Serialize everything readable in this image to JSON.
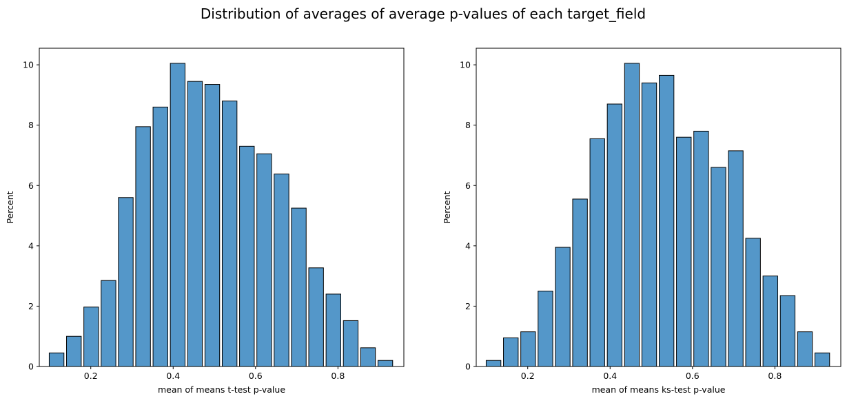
{
  "suptitle": "Distribution of averages of average p-values of each target_field",
  "chart_data": [
    {
      "type": "bar",
      "xlabel": "mean of means t-test p-value",
      "ylabel": "Percent",
      "xlim": [
        0.075,
        0.96
      ],
      "ylim": [
        0,
        10.55
      ],
      "xticks": [
        0.2,
        0.4,
        0.6,
        0.8
      ],
      "yticks": [
        0,
        2,
        4,
        6,
        8,
        10
      ],
      "bin_width": 0.042,
      "bin_centers": [
        0.117,
        0.159,
        0.201,
        0.243,
        0.285,
        0.327,
        0.369,
        0.411,
        0.453,
        0.495,
        0.537,
        0.579,
        0.621,
        0.663,
        0.705,
        0.747,
        0.789,
        0.831,
        0.873,
        0.915
      ],
      "values": [
        0.45,
        1.0,
        1.97,
        2.85,
        5.6,
        7.95,
        8.6,
        10.05,
        9.45,
        9.35,
        8.8,
        7.3,
        7.05,
        6.38,
        5.25,
        3.27,
        2.4,
        1.52,
        0.62,
        0.2
      ],
      "color": "#5497c9",
      "edge_color": "#000000",
      "grid": false
    },
    {
      "type": "bar",
      "xlabel": "mean of means ks-test p-value",
      "ylabel": "Percent",
      "xlim": [
        0.075,
        0.96
      ],
      "ylim": [
        0,
        10.55
      ],
      "xticks": [
        0.2,
        0.4,
        0.6,
        0.8
      ],
      "yticks": [
        0,
        2,
        4,
        6,
        8,
        10
      ],
      "bin_width": 0.042,
      "bin_centers": [
        0.117,
        0.159,
        0.201,
        0.243,
        0.285,
        0.327,
        0.369,
        0.411,
        0.453,
        0.495,
        0.537,
        0.579,
        0.621,
        0.663,
        0.705,
        0.747,
        0.789,
        0.831,
        0.873,
        0.915
      ],
      "values": [
        0.2,
        0.95,
        1.15,
        2.5,
        3.95,
        5.55,
        7.55,
        8.7,
        10.05,
        9.4,
        9.65,
        7.6,
        7.8,
        6.6,
        7.15,
        4.25,
        3.0,
        2.35,
        1.15,
        0.45
      ],
      "color": "#5497c9",
      "edge_color": "#000000",
      "grid": false
    }
  ]
}
